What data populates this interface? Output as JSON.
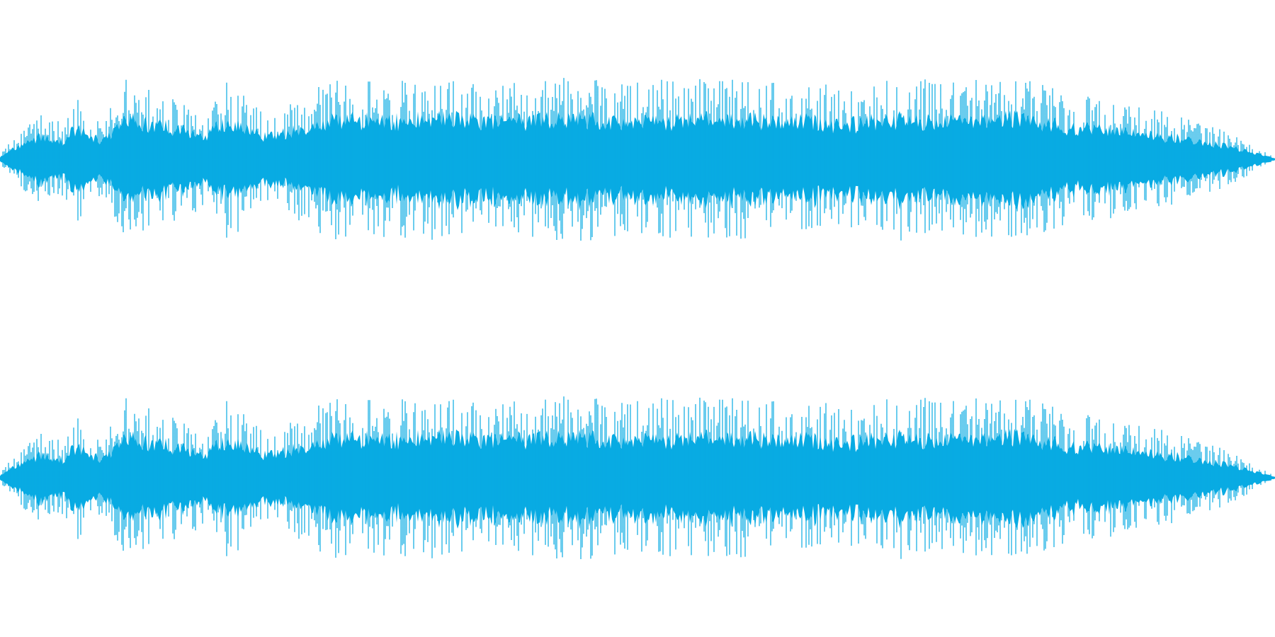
{
  "waveform": {
    "color": "#08abe3",
    "background": "#ffffff",
    "channel_count": 2,
    "channels": [
      {
        "name": "",
        "seed": 7
      },
      {
        "name": "",
        "seed": 7
      }
    ],
    "envelope": [
      [
        0.0,
        0.05
      ],
      [
        0.01,
        0.25
      ],
      [
        0.03,
        0.55
      ],
      [
        0.05,
        0.45
      ],
      [
        0.06,
        0.8
      ],
      [
        0.08,
        0.45
      ],
      [
        0.1,
        1.0
      ],
      [
        0.13,
        0.8
      ],
      [
        0.16,
        0.6
      ],
      [
        0.18,
        1.0
      ],
      [
        0.21,
        0.55
      ],
      [
        0.23,
        0.7
      ],
      [
        0.26,
        1.0
      ],
      [
        0.3,
        0.95
      ],
      [
        0.35,
        1.0
      ],
      [
        0.4,
        0.95
      ],
      [
        0.45,
        1.0
      ],
      [
        0.5,
        0.95
      ],
      [
        0.55,
        1.0
      ],
      [
        0.6,
        0.95
      ],
      [
        0.63,
        1.0
      ],
      [
        0.66,
        0.85
      ],
      [
        0.7,
        1.0
      ],
      [
        0.75,
        0.95
      ],
      [
        0.8,
        1.0
      ],
      [
        0.84,
        0.8
      ],
      [
        0.88,
        0.7
      ],
      [
        0.92,
        0.55
      ],
      [
        0.96,
        0.35
      ],
      [
        0.985,
        0.15
      ],
      [
        1.0,
        0.02
      ]
    ]
  }
}
